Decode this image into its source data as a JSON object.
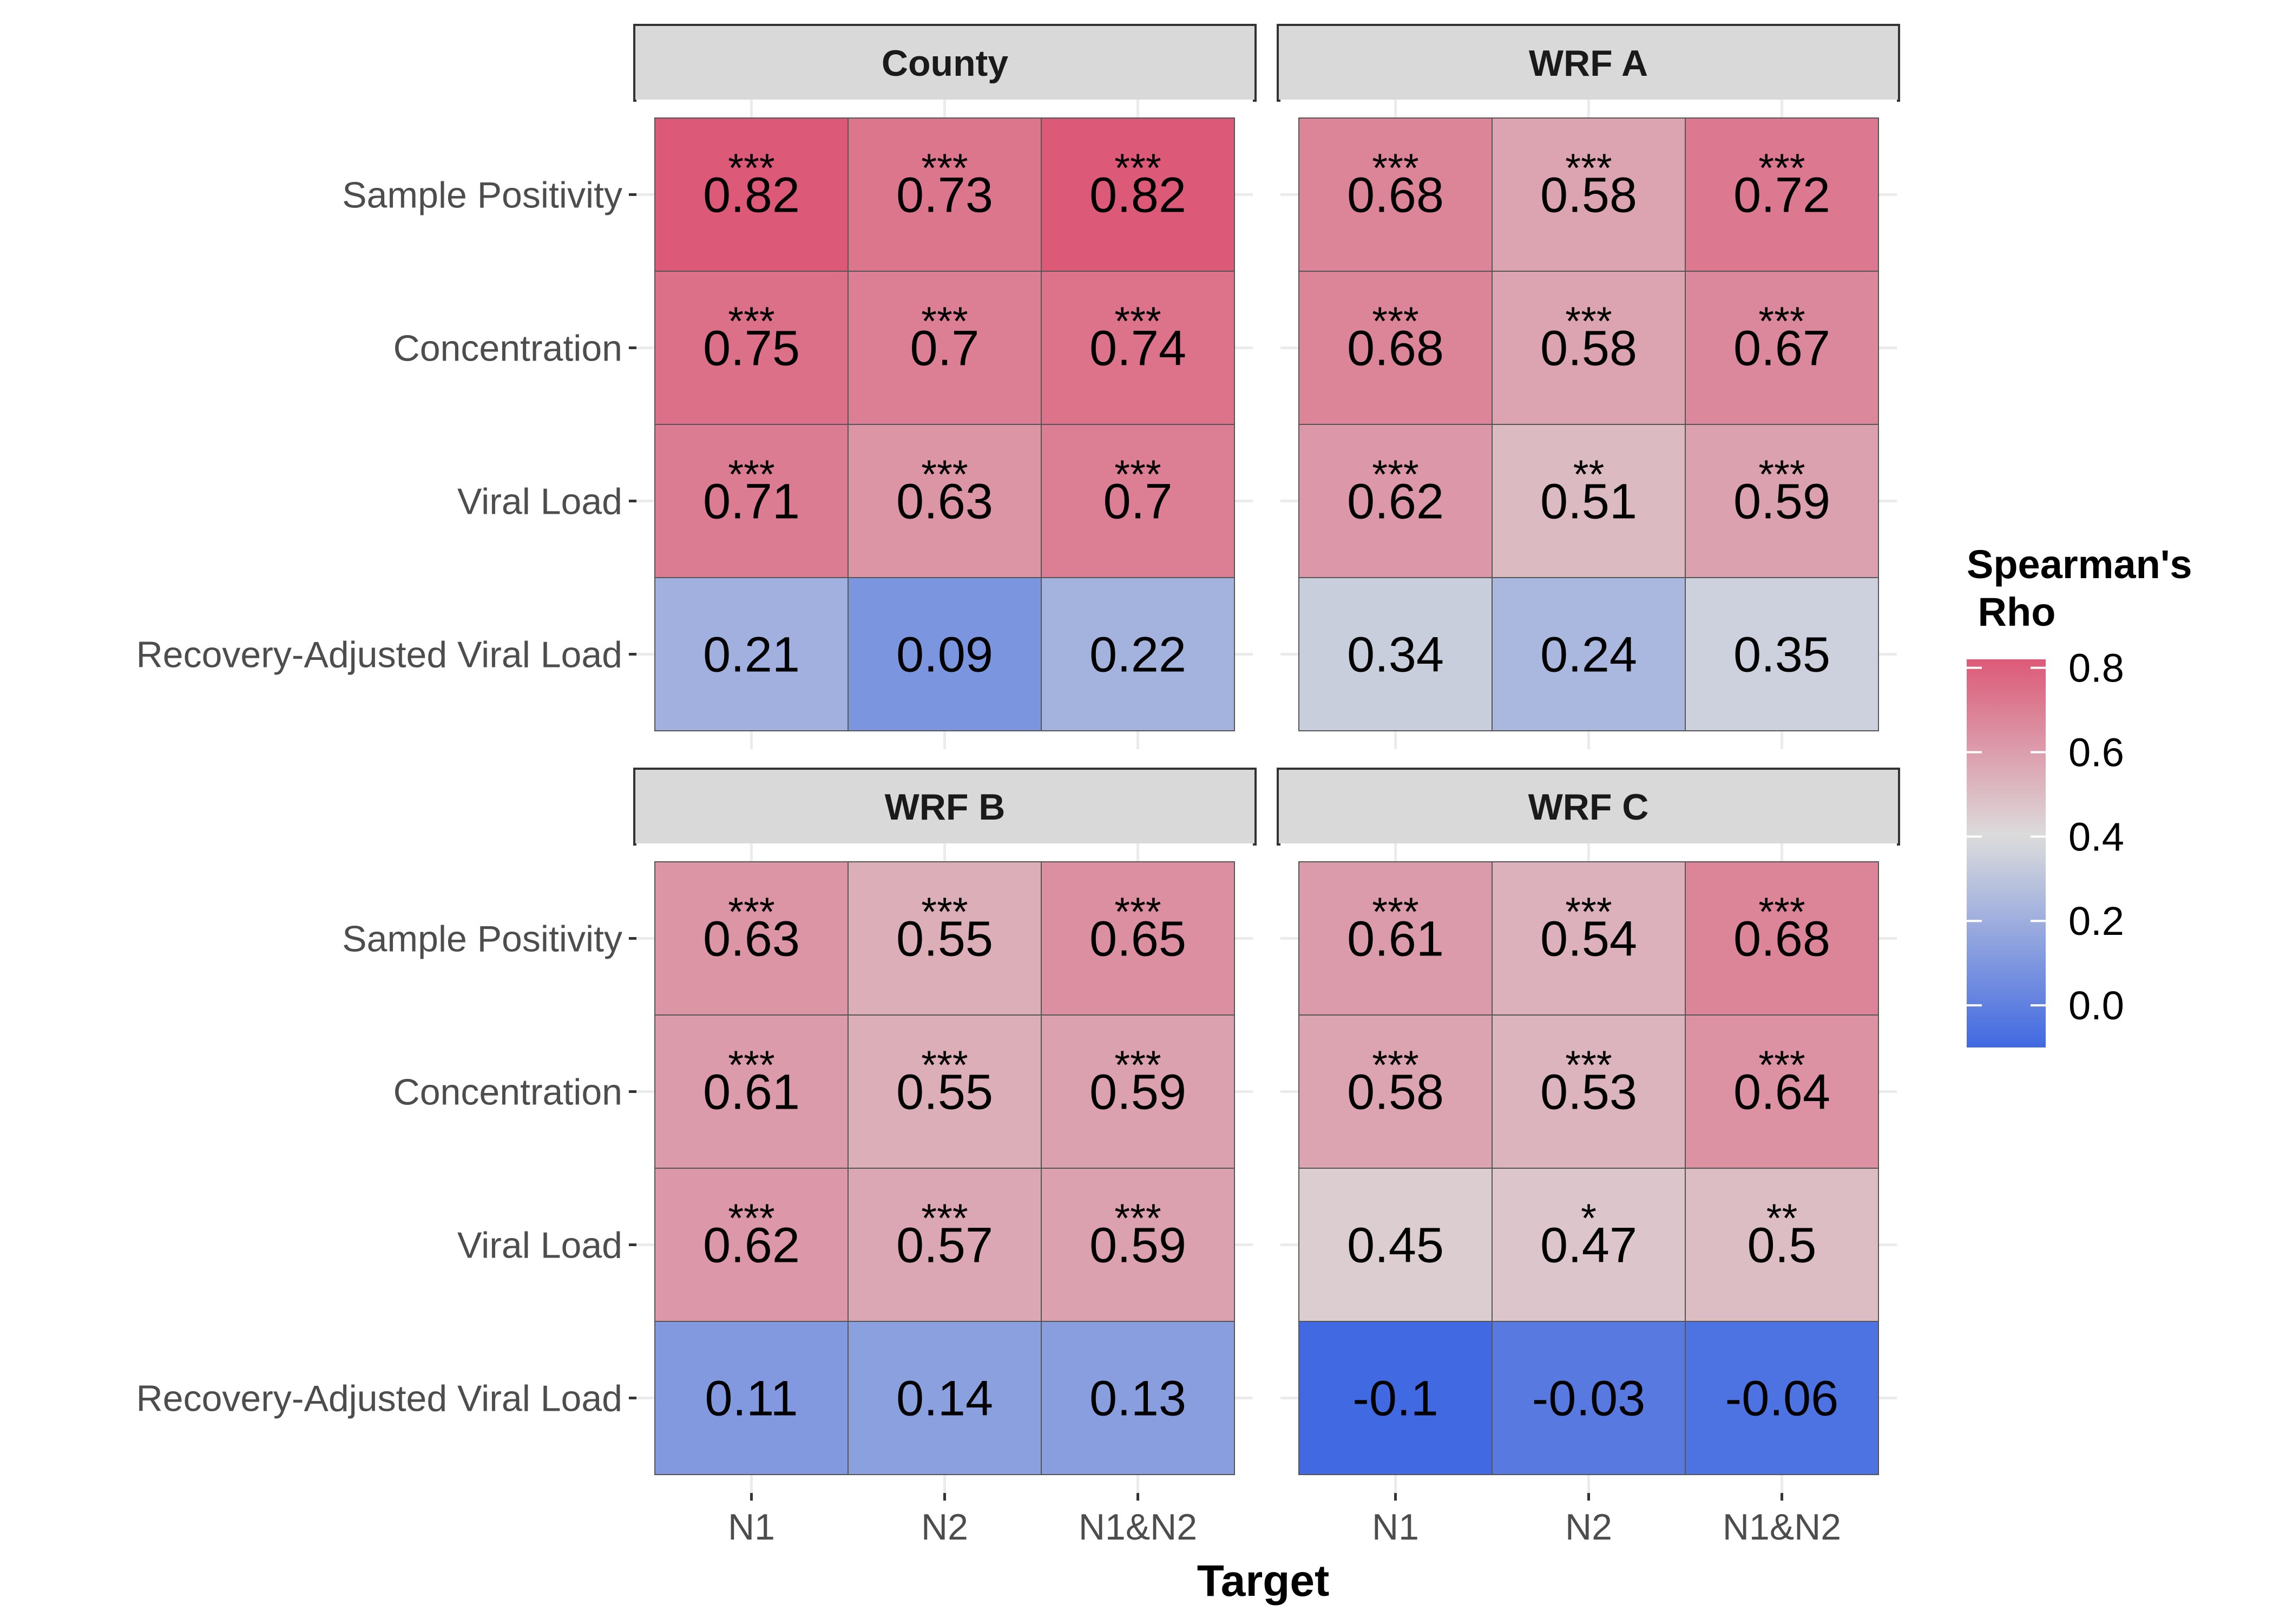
{
  "chart_data": {
    "type": "heatmap",
    "xlabel": "Target",
    "x_categories": [
      "N1",
      "N2",
      "N1&N2"
    ],
    "y_categories": [
      "Sample Positivity",
      "Concentration",
      "Viral Load",
      "Recovery-Adjusted Viral Load"
    ],
    "legend": {
      "title": "Spearman's\n Rho",
      "ticks": [
        "0.8",
        "0.6",
        "0.4",
        "0.2",
        "0.0"
      ],
      "tick_values": [
        0.8,
        0.6,
        0.4,
        0.2,
        0.0
      ],
      "min": -0.1,
      "max": 0.82,
      "midpoint": 0.4,
      "low_color": "#4169e1",
      "mid_color": "#dcdcdc",
      "high_color": "#dc5a78",
      "placement": "right"
    },
    "panels": [
      {
        "name": "County",
        "values": [
          [
            0.82,
            0.73,
            0.82
          ],
          [
            0.75,
            0.7,
            0.74
          ],
          [
            0.71,
            0.63,
            0.7
          ],
          [
            0.21,
            0.09,
            0.22
          ]
        ],
        "labels": [
          [
            "0.82",
            "0.73",
            "0.82"
          ],
          [
            "0.75",
            "0.7",
            "0.74"
          ],
          [
            "0.71",
            "0.63",
            "0.7"
          ],
          [
            "0.21",
            "0.09",
            "0.22"
          ]
        ],
        "significance": [
          [
            "***",
            "***",
            "***"
          ],
          [
            "***",
            "***",
            "***"
          ],
          [
            "***",
            "***",
            "***"
          ],
          [
            "",
            "",
            ""
          ]
        ]
      },
      {
        "name": "WRF A",
        "values": [
          [
            0.68,
            0.58,
            0.72
          ],
          [
            0.68,
            0.58,
            0.67
          ],
          [
            0.62,
            0.51,
            0.59
          ],
          [
            0.34,
            0.24,
            0.35
          ]
        ],
        "labels": [
          [
            "0.68",
            "0.58",
            "0.72"
          ],
          [
            "0.68",
            "0.58",
            "0.67"
          ],
          [
            "0.62",
            "0.51",
            "0.59"
          ],
          [
            "0.34",
            "0.24",
            "0.35"
          ]
        ],
        "significance": [
          [
            "***",
            "***",
            "***"
          ],
          [
            "***",
            "***",
            "***"
          ],
          [
            "***",
            "**",
            "***"
          ],
          [
            "",
            "",
            ""
          ]
        ]
      },
      {
        "name": "WRF B",
        "values": [
          [
            0.63,
            0.55,
            0.65
          ],
          [
            0.61,
            0.55,
            0.59
          ],
          [
            0.62,
            0.57,
            0.59
          ],
          [
            0.11,
            0.14,
            0.13
          ]
        ],
        "labels": [
          [
            "0.63",
            "0.55",
            "0.65"
          ],
          [
            "0.61",
            "0.55",
            "0.59"
          ],
          [
            "0.62",
            "0.57",
            "0.59"
          ],
          [
            "0.11",
            "0.14",
            "0.13"
          ]
        ],
        "significance": [
          [
            "***",
            "***",
            "***"
          ],
          [
            "***",
            "***",
            "***"
          ],
          [
            "***",
            "***",
            "***"
          ],
          [
            "",
            "",
            ""
          ]
        ]
      },
      {
        "name": "WRF C",
        "values": [
          [
            0.61,
            0.54,
            0.68
          ],
          [
            0.58,
            0.53,
            0.64
          ],
          [
            0.45,
            0.47,
            0.5
          ],
          [
            -0.1,
            -0.03,
            -0.06
          ]
        ],
        "labels": [
          [
            "0.61",
            "0.54",
            "0.68"
          ],
          [
            "0.58",
            "0.53",
            "0.64"
          ],
          [
            "0.45",
            "0.47",
            "0.5"
          ],
          [
            "-0.1",
            "-0.03",
            "-0.06"
          ]
        ],
        "significance": [
          [
            "***",
            "***",
            "***"
          ],
          [
            "***",
            "***",
            "***"
          ],
          [
            "",
            "*",
            "**"
          ],
          [
            "",
            "",
            ""
          ]
        ]
      }
    ]
  }
}
